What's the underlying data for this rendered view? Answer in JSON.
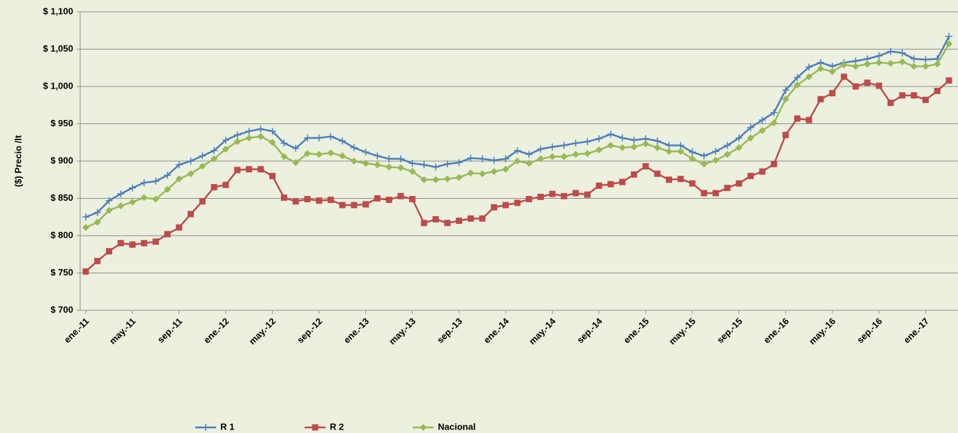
{
  "chart_data": {
    "type": "line",
    "y_label": "($) Precio /lt",
    "categories": [
      "ene.-11",
      null,
      null,
      null,
      "may.-11",
      null,
      null,
      null,
      "sep.-11",
      null,
      null,
      null,
      "ene.-12",
      null,
      null,
      null,
      "may.-12",
      null,
      null,
      null,
      "sep.-12",
      null,
      null,
      null,
      "ene.-13",
      null,
      null,
      null,
      "may.-13",
      null,
      null,
      null,
      "sep.-13",
      null,
      null,
      null,
      "ene.-14",
      null,
      null,
      null,
      "may.-14",
      null,
      null,
      null,
      "sep.-14",
      null,
      null,
      null,
      "ene.-15",
      null,
      null,
      null,
      "may.-15",
      null,
      null,
      null,
      "sep.-15",
      null,
      null,
      null,
      "ene.-16",
      null,
      null,
      null,
      "may.-16",
      null,
      null,
      null,
      "sep.-16",
      null,
      null,
      null,
      "ene.-17",
      null,
      null
    ],
    "series": [
      {
        "name": "R 1",
        "color": "#4a7ebb",
        "marker": "plus",
        "values": [
          825,
          831,
          847,
          856,
          864,
          871,
          873,
          881,
          895,
          900,
          907,
          914,
          928,
          935,
          940,
          943,
          940,
          924,
          917,
          931,
          931,
          933,
          927,
          918,
          912,
          907,
          903,
          903,
          897,
          895,
          892,
          896,
          898,
          904,
          903,
          901,
          903,
          914,
          909,
          916,
          919,
          921,
          924,
          926,
          930,
          936,
          931,
          928,
          930,
          927,
          921,
          921,
          912,
          907,
          913,
          921,
          931,
          945,
          955,
          965,
          995,
          1012,
          1026,
          1032,
          1027,
          1032,
          1034,
          1037,
          1041,
          1047,
          1045,
          1037,
          1036,
          1037,
          1067
        ]
      },
      {
        "name": "R 2",
        "color": "#be4b48",
        "marker": "square",
        "values": [
          752,
          766,
          779,
          790,
          788,
          790,
          792,
          802,
          811,
          829,
          846,
          865,
          868,
          888,
          889,
          889,
          880,
          851,
          846,
          849,
          847,
          848,
          841,
          841,
          842,
          850,
          848,
          853,
          849,
          817,
          822,
          817,
          820,
          823,
          823,
          838,
          841,
          844,
          849,
          852,
          856,
          853,
          857,
          855,
          867,
          869,
          872,
          882,
          893,
          883,
          875,
          876,
          870,
          857,
          857,
          864,
          870,
          880,
          886,
          896,
          935,
          957,
          955,
          983,
          991,
          1013,
          1000,
          1005,
          1001,
          978,
          988,
          988,
          982,
          994,
          1008
        ]
      },
      {
        "name": "Nacional",
        "color": "#98b954",
        "marker": "diamond",
        "values": [
          811,
          818,
          834,
          840,
          845,
          851,
          849,
          862,
          876,
          883,
          893,
          903,
          916,
          926,
          931,
          933,
          925,
          906,
          898,
          910,
          909,
          911,
          907,
          900,
          897,
          895,
          892,
          891,
          886,
          875,
          875,
          876,
          878,
          884,
          883,
          886,
          889,
          900,
          897,
          903,
          906,
          906,
          909,
          910,
          915,
          921,
          918,
          919,
          923,
          918,
          913,
          913,
          903,
          896,
          901,
          909,
          918,
          931,
          941,
          951,
          983,
          1002,
          1013,
          1024,
          1020,
          1029,
          1027,
          1030,
          1032,
          1031,
          1033,
          1027,
          1027,
          1030,
          1057
        ]
      }
    ],
    "ylim": [
      700,
      1100
    ],
    "yticks": [
      {
        "value": 700,
        "label": "$ 700"
      },
      {
        "value": 750,
        "label": "$ 750"
      },
      {
        "value": 800,
        "label": "$ 800"
      },
      {
        "value": 850,
        "label": "$ 850"
      },
      {
        "value": 900,
        "label": "$ 900"
      },
      {
        "value": 950,
        "label": "$ 950"
      },
      {
        "value": 1000,
        "label": "$ 1,000"
      },
      {
        "value": 1050,
        "label": "$ 1,050"
      },
      {
        "value": 1100,
        "label": "$ 1,100"
      }
    ],
    "grid": true,
    "legend": "bottom"
  }
}
